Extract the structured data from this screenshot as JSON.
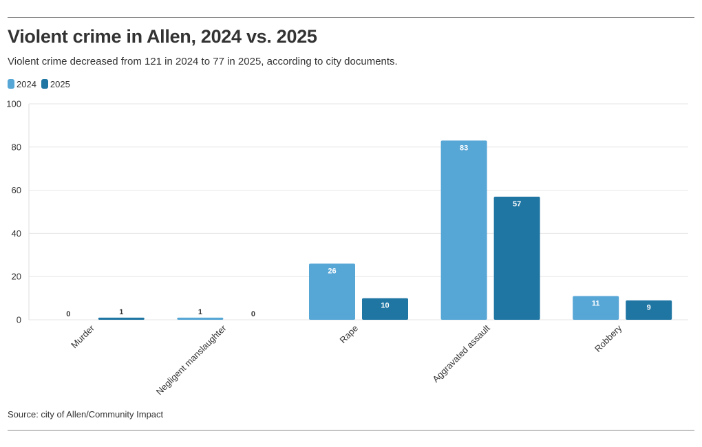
{
  "header": {
    "title": "Violent crime in Allen, 2024 vs. 2025",
    "subtitle": "Violent crime decreased from 121 in 2024 to 77 in 2025, according to city documents."
  },
  "footer": {
    "source": "Source: city of Allen/Community Impact"
  },
  "colors": {
    "series_2024": "#56a6d6",
    "series_2025": "#1f76a3",
    "grid": "#e6e6e6",
    "text": "#333333"
  },
  "chart_data": {
    "type": "bar",
    "categories": [
      "Murder",
      "Negligent manslaughter",
      "Rape",
      "Aggravated assault",
      "Robbery"
    ],
    "series": [
      {
        "name": "2024",
        "values": [
          0,
          1,
          26,
          83,
          11
        ],
        "color": "#56a6d6"
      },
      {
        "name": "2025",
        "values": [
          1,
          0,
          10,
          57,
          9
        ],
        "color": "#1f76a3"
      }
    ],
    "ylim": [
      0,
      100
    ],
    "yticks": [
      0,
      20,
      40,
      60,
      80,
      100
    ],
    "xlabel": "",
    "ylabel": "",
    "grid": true,
    "legend_position": "top-left",
    "data_labels": true
  }
}
